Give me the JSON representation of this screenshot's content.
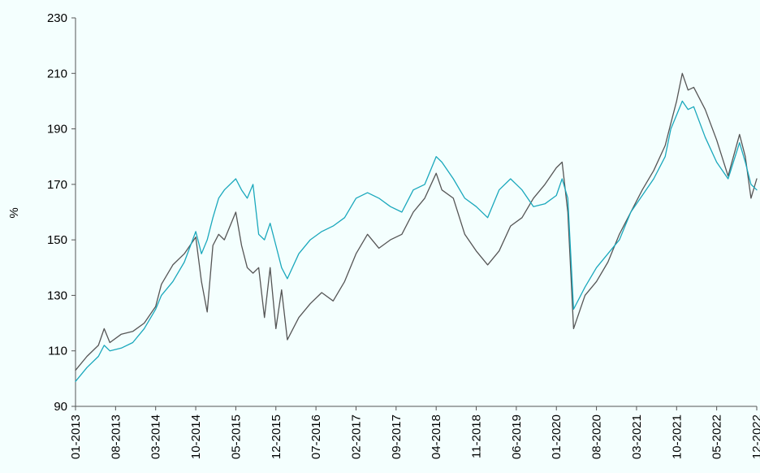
{
  "chart_data": {
    "type": "line",
    "title": "",
    "xlabel": "",
    "ylabel": "%",
    "ylim": [
      90,
      230
    ],
    "yticks": [
      90,
      110,
      130,
      150,
      170,
      190,
      210,
      230
    ],
    "xlim": [
      "01-2013",
      "12-2022"
    ],
    "xticks": [
      "01-2013",
      "08-2013",
      "03-2014",
      "10-2014",
      "05-2015",
      "12-2015",
      "07-2016",
      "02-2017",
      "09-2017",
      "04-2018",
      "11-2018",
      "06-2019",
      "01-2020",
      "08-2020",
      "03-2021",
      "10-2021",
      "05-2022",
      "12-2022"
    ],
    "grid": false,
    "legend": "none",
    "series": [
      {
        "color": "#555555",
        "x": [
          "01-2013",
          "03-2013",
          "05-2013",
          "06-2013",
          "07-2013",
          "09-2013",
          "11-2013",
          "01-2014",
          "03-2014",
          "04-2014",
          "06-2014",
          "08-2014",
          "10-2014",
          "11-2014",
          "12-2014",
          "01-2015",
          "02-2015",
          "03-2015",
          "05-2015",
          "06-2015",
          "07-2015",
          "08-2015",
          "09-2015",
          "10-2015",
          "11-2015",
          "12-2015",
          "01-2016",
          "02-2016",
          "04-2016",
          "06-2016",
          "08-2016",
          "10-2016",
          "12-2016",
          "02-2017",
          "04-2017",
          "06-2017",
          "08-2017",
          "10-2017",
          "12-2017",
          "02-2018",
          "04-2018",
          "05-2018",
          "07-2018",
          "09-2018",
          "11-2018",
          "01-2019",
          "03-2019",
          "05-2019",
          "07-2019",
          "09-2019",
          "11-2019",
          "01-2020",
          "02-2020",
          "03-2020",
          "04-2020",
          "06-2020",
          "08-2020",
          "10-2020",
          "12-2020",
          "02-2021",
          "04-2021",
          "06-2021",
          "08-2021",
          "09-2021",
          "10-2021",
          "11-2021",
          "12-2021",
          "01-2022",
          "03-2022",
          "05-2022",
          "07-2022",
          "09-2022",
          "10-2022",
          "11-2022",
          "12-2022"
        ],
        "values": [
          103,
          108,
          112,
          118,
          113,
          116,
          117,
          120,
          126,
          134,
          141,
          145,
          151,
          135,
          124,
          148,
          152,
          150,
          160,
          148,
          140,
          138,
          140,
          122,
          140,
          118,
          132,
          114,
          122,
          127,
          131,
          128,
          135,
          145,
          152,
          147,
          150,
          152,
          160,
          165,
          174,
          168,
          165,
          152,
          146,
          141,
          146,
          155,
          158,
          165,
          170,
          176,
          178,
          160,
          118,
          130,
          135,
          142,
          152,
          160,
          168,
          175,
          184,
          192,
          200,
          210,
          204,
          205,
          197,
          186,
          173,
          188,
          180,
          165,
          172
        ]
      },
      {
        "color": "#1aa8bc",
        "x": [
          "01-2013",
          "03-2013",
          "05-2013",
          "06-2013",
          "07-2013",
          "09-2013",
          "11-2013",
          "01-2014",
          "03-2014",
          "04-2014",
          "06-2014",
          "08-2014",
          "10-2014",
          "11-2014",
          "12-2014",
          "01-2015",
          "02-2015",
          "03-2015",
          "05-2015",
          "06-2015",
          "07-2015",
          "08-2015",
          "09-2015",
          "10-2015",
          "11-2015",
          "12-2015",
          "01-2016",
          "02-2016",
          "04-2016",
          "06-2016",
          "08-2016",
          "10-2016",
          "12-2016",
          "02-2017",
          "04-2017",
          "06-2017",
          "08-2017",
          "10-2017",
          "12-2017",
          "02-2018",
          "04-2018",
          "05-2018",
          "07-2018",
          "09-2018",
          "11-2018",
          "01-2019",
          "03-2019",
          "05-2019",
          "07-2019",
          "09-2019",
          "11-2019",
          "01-2020",
          "02-2020",
          "03-2020",
          "04-2020",
          "06-2020",
          "08-2020",
          "10-2020",
          "12-2020",
          "02-2021",
          "04-2021",
          "06-2021",
          "08-2021",
          "09-2021",
          "10-2021",
          "11-2021",
          "12-2021",
          "01-2022",
          "03-2022",
          "05-2022",
          "07-2022",
          "09-2022",
          "10-2022",
          "11-2022",
          "12-2022"
        ],
        "values": [
          99,
          104,
          108,
          112,
          110,
          111,
          113,
          118,
          125,
          130,
          135,
          142,
          153,
          145,
          150,
          158,
          165,
          168,
          172,
          168,
          165,
          170,
          152,
          150,
          156,
          148,
          140,
          136,
          145,
          150,
          153,
          155,
          158,
          165,
          167,
          165,
          162,
          160,
          168,
          170,
          180,
          178,
          172,
          165,
          162,
          158,
          168,
          172,
          168,
          162,
          163,
          166,
          172,
          165,
          125,
          133,
          140,
          145,
          150,
          160,
          166,
          172,
          180,
          190,
          195,
          200,
          197,
          198,
          187,
          178,
          172,
          185,
          178,
          170,
          168
        ]
      }
    ]
  }
}
